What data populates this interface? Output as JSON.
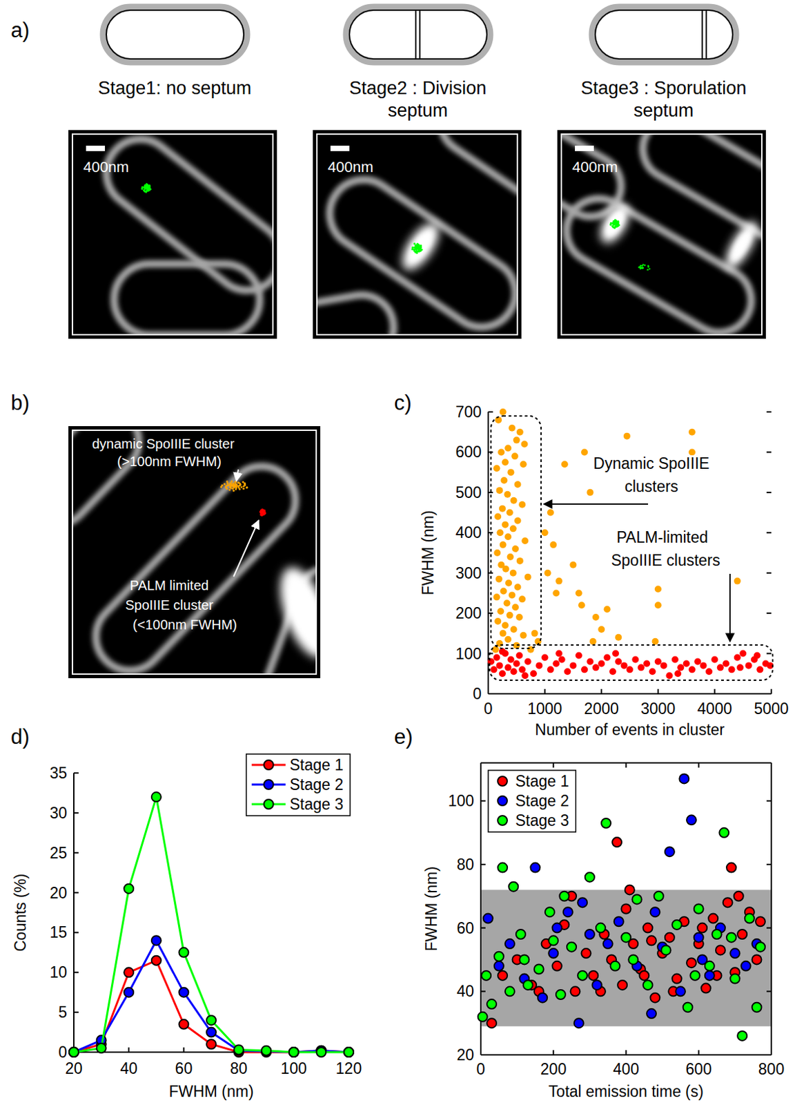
{
  "figure": {
    "panel_a": {
      "label": "a)",
      "stages": [
        {
          "title": [
            "Stage1: no septum"
          ],
          "scale_bar": "400nm"
        },
        {
          "title": [
            "Stage2 : Division",
            "septum"
          ],
          "scale_bar": "400nm"
        },
        {
          "title": [
            "Stage3 : Sporulation",
            "septum"
          ],
          "scale_bar": "400nm"
        }
      ]
    },
    "panel_b": {
      "label": "b)",
      "dynamic_cluster": [
        "dynamic SpoIIIE cluster",
        "(>100nm FWHM)"
      ],
      "palm_cluster": [
        "PALM limited",
        "SpoIIIE cluster",
        "(<100nm FWHM)"
      ]
    }
  },
  "chart_data": [
    {
      "type": "scatter",
      "panel_label": "c)",
      "x_label": "Number of events in cluster",
      "y_label": "FWHM (nm)",
      "xlim": [
        0,
        5000
      ],
      "ylim": [
        0,
        700
      ],
      "xticks": [
        0,
        1000,
        2000,
        3000,
        4000,
        5000
      ],
      "yticks": [
        0,
        100,
        200,
        300,
        400,
        500,
        600,
        700
      ],
      "annotations": [
        {
          "text": [
            "Dynamic SpoIIIE",
            "clusters"
          ]
        },
        {
          "text": [
            "PALM-limited",
            "SpoIIIE clusters"
          ]
        }
      ],
      "series": [
        {
          "color": "#ffa500",
          "marker": "circle",
          "x": [
            260,
            180,
            420,
            560,
            500,
            640,
            350,
            230,
            470,
            300,
            620,
            150,
            400,
            280,
            520,
            200,
            340,
            450,
            600,
            250,
            380,
            170,
            520,
            300,
            440,
            210,
            350,
            650,
            260,
            480,
            160,
            390,
            560,
            230,
            310,
            440,
            700,
            190,
            360,
            520,
            270,
            420,
            150,
            600,
            330,
            480,
            220,
            380,
            550,
            170,
            300,
            450,
            260,
            620,
            350,
            200,
            500,
            750,
            130,
            1000,
            1100,
            1150,
            1050,
            1250,
            1500,
            1600,
            1700,
            1800,
            1650,
            1900,
            2000,
            2100,
            2300,
            2450,
            3000,
            3000,
            2950,
            3600,
            3600,
            4400,
            1200,
            1850,
            1350,
            820,
            880
          ],
          "values": [
            700,
            680,
            660,
            650,
            630,
            620,
            610,
            600,
            590,
            575,
            570,
            560,
            550,
            530,
            520,
            505,
            495,
            480,
            470,
            460,
            450,
            440,
            430,
            420,
            410,
            400,
            390,
            380,
            370,
            360,
            350,
            340,
            330,
            320,
            310,
            300,
            290,
            285,
            275,
            265,
            255,
            245,
            240,
            235,
            225,
            215,
            205,
            195,
            190,
            180,
            170,
            160,
            150,
            145,
            135,
            125,
            120,
            110,
            110,
            400,
            450,
            370,
            300,
            280,
            320,
            250,
            600,
            500,
            220,
            190,
            160,
            210,
            140,
            640,
            260,
            220,
            130,
            650,
            600,
            280,
            250,
            130,
            570,
            150,
            130
          ]
        },
        {
          "color": "#ff0000",
          "marker": "circle",
          "x": [
            50,
            100,
            150,
            200,
            250,
            300,
            350,
            400,
            450,
            500,
            550,
            600,
            700,
            800,
            900,
            1000,
            1100,
            1200,
            1300,
            1400,
            1500,
            1600,
            1700,
            1800,
            1900,
            2000,
            2100,
            2200,
            2300,
            2400,
            2500,
            2600,
            2700,
            2800,
            2900,
            3000,
            3100,
            3200,
            3300,
            3400,
            3500,
            3600,
            3700,
            3800,
            3900,
            4000,
            4100,
            4200,
            4300,
            4400,
            4500,
            4600,
            4700,
            4800,
            4900,
            4980,
            250,
            650,
            1250,
            2250,
            3350,
            4450,
            4750
          ],
          "values": [
            80,
            60,
            90,
            70,
            50,
            100,
            65,
            85,
            55,
            75,
            95,
            60,
            80,
            50,
            70,
            90,
            60,
            75,
            85,
            55,
            70,
            95,
            60,
            80,
            65,
            75,
            90,
            55,
            80,
            70,
            60,
            85,
            65,
            75,
            55,
            80,
            70,
            45,
            85,
            65,
            75,
            60,
            80,
            70,
            55,
            85,
            65,
            75,
            60,
            90,
            100,
            70,
            85,
            60,
            75,
            70,
            105,
            45,
            100,
            100,
            50,
            65,
            95
          ]
        }
      ]
    },
    {
      "type": "line",
      "panel_label": "d)",
      "x_label": "FWHM (nm)",
      "y_label": "Counts (%)",
      "xlim": [
        20,
        120
      ],
      "ylim": [
        0,
        35
      ],
      "xticks": [
        20,
        40,
        60,
        80,
        100,
        120
      ],
      "yticks": [
        0,
        5,
        10,
        15,
        20,
        25,
        30,
        35
      ],
      "legend": "top-right",
      "x": [
        20,
        30,
        40,
        50,
        60,
        70,
        80,
        90,
        100,
        110,
        120
      ],
      "series": [
        {
          "name": "Stage 1",
          "color": "#ff0000",
          "marker": "circle",
          "line_style": "solid",
          "values": [
            0,
            1,
            10,
            11.5,
            3.5,
            1,
            0,
            0,
            0,
            0.2,
            0
          ]
        },
        {
          "name": "Stage 2",
          "color": "#0000ff",
          "marker": "circle",
          "line_style": "solid",
          "values": [
            0,
            1.5,
            7.5,
            14,
            7.5,
            2.5,
            0.2,
            0.1,
            0,
            0.2,
            0
          ]
        },
        {
          "name": "Stage 3",
          "color": "#00ff00",
          "marker": "circle",
          "line_style": "solid",
          "values": [
            0,
            0.5,
            20.5,
            32,
            12.5,
            4,
            0.3,
            0.2,
            0,
            0,
            0
          ]
        }
      ]
    },
    {
      "type": "scatter",
      "panel_label": "e)",
      "x_label": "Total emission time (s)",
      "y_label": "FWHM (nm)",
      "xlim": [
        0,
        800
      ],
      "ylim": [
        20,
        112
      ],
      "xticks": [
        0,
        200,
        400,
        600,
        800
      ],
      "yticks": [
        20,
        40,
        60,
        80,
        100
      ],
      "legend": "top-left",
      "shaded_range": [
        29,
        72
      ],
      "series": [
        {
          "name": "Stage 1",
          "color": "#ff0000",
          "marker": "circle",
          "x": [
            30,
            60,
            100,
            140,
            180,
            210,
            230,
            260,
            290,
            310,
            340,
            360,
            375,
            390,
            410,
            420,
            440,
            460,
            480,
            500,
            520,
            540,
            560,
            580,
            600,
            620,
            640,
            660,
            680,
            690,
            700,
            720,
            740,
            760,
            770,
            450,
            530,
            610,
            250,
            160,
            330,
            400,
            470,
            650,
            710
          ],
          "values": [
            30,
            45,
            50,
            42,
            55,
            48,
            61,
            40,
            52,
            45,
            58,
            50,
            87,
            42,
            72,
            55,
            47,
            60,
            38,
            52,
            57,
            44,
            62,
            49,
            55,
            41,
            63,
            53,
            68,
            79,
            46,
            58,
            65,
            50,
            62,
            45,
            40,
            60,
            70,
            40,
            40,
            66,
            56,
            45,
            70
          ]
        },
        {
          "name": "Stage 2",
          "color": "#0000ff",
          "marker": "circle",
          "x": [
            20,
            50,
            80,
            120,
            150,
            170,
            200,
            240,
            270,
            300,
            320,
            380,
            430,
            470,
            500,
            520,
            550,
            560,
            580,
            600,
            630,
            660,
            700,
            730,
            760,
            280,
            350,
            480,
            210,
            610
          ],
          "values": [
            63,
            48,
            55,
            44,
            79,
            38,
            52,
            65,
            30,
            58,
            42,
            62,
            48,
            33,
            54,
            84,
            40,
            107,
            94,
            57,
            45,
            60,
            52,
            48,
            55,
            68,
            55,
            65,
            60,
            50
          ]
        },
        {
          "name": "Stage 3",
          "color": "#00ff00",
          "marker": "circle",
          "x": [
            5,
            15,
            30,
            50,
            60,
            90,
            110,
            130,
            160,
            190,
            220,
            250,
            280,
            300,
            330,
            345,
            370,
            400,
            430,
            460,
            490,
            510,
            540,
            570,
            600,
            630,
            650,
            670,
            700,
            720,
            740,
            760,
            770,
            80,
            200,
            420,
            590,
            690,
            230,
            120
          ],
          "values": [
            32,
            45,
            36,
            51,
            79,
            73,
            58,
            42,
            47,
            65,
            39,
            54,
            45,
            76,
            60,
            93,
            48,
            57,
            69,
            42,
            70,
            53,
            61,
            35,
            66,
            48,
            58,
            90,
            44,
            26,
            63,
            35,
            54,
            40,
            56,
            50,
            45,
            57,
            70,
            50
          ]
        }
      ]
    }
  ]
}
